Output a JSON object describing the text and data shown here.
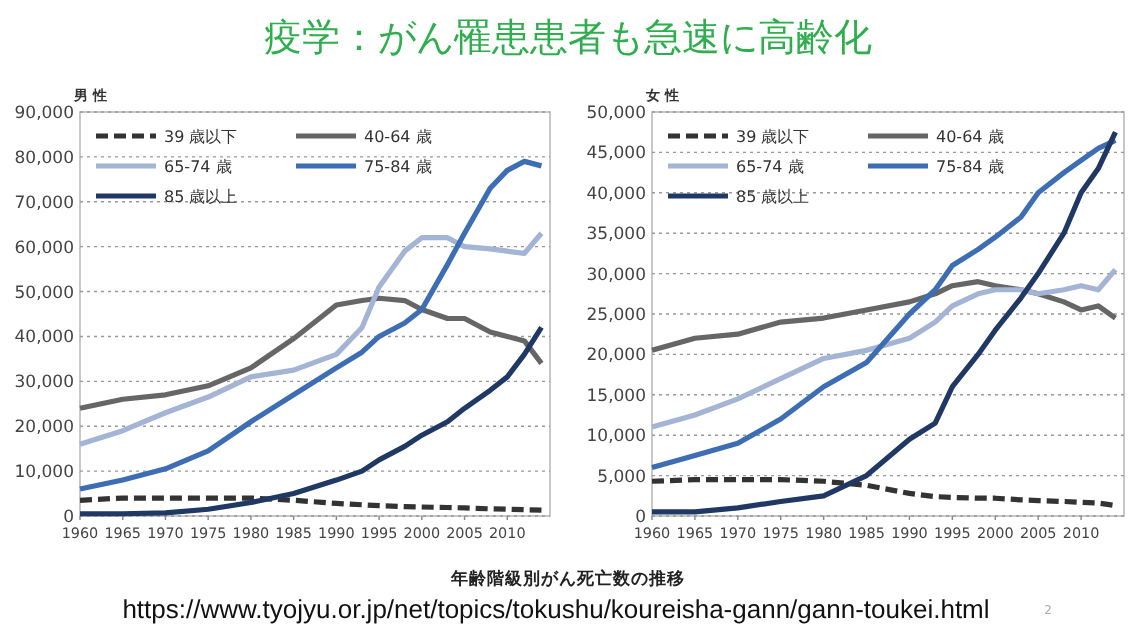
{
  "chart_data": [
    {
      "type": "line",
      "title": "疫学：がん罹患患者も急速に高齢化",
      "subtitle": "男 性",
      "annotations": [
        "年齢階級別がん死亡数の推移",
        "https://www.tyojyu.or.jp/net/topics/tokushu/koureisha-gann/gann-toukei.html",
        "2"
      ],
      "x": [
        1960,
        1965,
        1970,
        1975,
        1980,
        1985,
        1990,
        1993,
        1995,
        1998,
        2000,
        2003,
        2005,
        2008,
        2010,
        2012,
        2014
      ],
      "xlim": [
        1960,
        2015
      ],
      "xticks": [
        1960,
        1965,
        1970,
        1975,
        1980,
        1985,
        1990,
        1995,
        2000,
        2005,
        2010
      ],
      "ylim": [
        0,
        90000
      ],
      "yticks": [
        {
          "value": 0,
          "label": "0"
        },
        {
          "value": 10000,
          "label": "10,000"
        },
        {
          "value": 20000,
          "label": "20,000"
        },
        {
          "value": 30000,
          "label": "30,000"
        },
        {
          "value": 40000,
          "label": "40,000"
        },
        {
          "value": 50000,
          "label": "50,000"
        },
        {
          "value": 60000,
          "label": "60,000"
        },
        {
          "value": 70000,
          "label": "70,000"
        },
        {
          "value": 80000,
          "label": "80,000"
        },
        {
          "value": 90000,
          "label": "90,000"
        }
      ],
      "grid": "y",
      "legend": "top left",
      "series": [
        {
          "name": "39 歳以下",
          "color": "#333333",
          "line_style": "dashed",
          "values": [
            3500,
            4000,
            4000,
            4000,
            4000,
            3500,
            2800,
            2500,
            2300,
            2100,
            2000,
            1900,
            1800,
            1600,
            1500,
            1400,
            1300
          ]
        },
        {
          "name": "40-64 歳",
          "color": "#666666",
          "values": [
            24000,
            26000,
            27000,
            29000,
            33000,
            39500,
            47000,
            48000,
            48500,
            48000,
            46000,
            44000,
            44000,
            41000,
            40000,
            39000,
            34000
          ]
        },
        {
          "name": "65-74 歳",
          "color": "#a4b4d4",
          "values": [
            16000,
            19000,
            23000,
            26500,
            31000,
            32500,
            36000,
            42000,
            51000,
            59000,
            62000,
            62000,
            60000,
            59500,
            59000,
            58500,
            63000
          ]
        },
        {
          "name": "75-84 歳",
          "color": "#3d6db3",
          "values": [
            6000,
            8000,
            10500,
            14500,
            21000,
            27000,
            33000,
            36500,
            40000,
            43000,
            46000,
            56000,
            63000,
            73000,
            77000,
            79000,
            78000
          ]
        },
        {
          "name": "85 歳以上",
          "color": "#1f3864",
          "values": [
            500,
            500,
            700,
            1500,
            3000,
            5000,
            8000,
            10000,
            12500,
            15500,
            18000,
            21000,
            24000,
            28000,
            31000,
            36000,
            42000
          ]
        }
      ]
    },
    {
      "type": "line",
      "subtitle": "女 性",
      "x": [
        1960,
        1965,
        1970,
        1975,
        1980,
        1985,
        1990,
        1993,
        1995,
        1998,
        2000,
        2003,
        2005,
        2008,
        2010,
        2012,
        2014
      ],
      "xlim": [
        1960,
        2015
      ],
      "xticks": [
        1960,
        1965,
        1970,
        1975,
        1980,
        1985,
        1990,
        1995,
        2000,
        2005,
        2010
      ],
      "ylim": [
        0,
        50000
      ],
      "yticks": [
        {
          "value": 0,
          "label": "0"
        },
        {
          "value": 5000,
          "label": "5,000"
        },
        {
          "value": 10000,
          "label": "10,000"
        },
        {
          "value": 15000,
          "label": "15,000"
        },
        {
          "value": 20000,
          "label": "20,000"
        },
        {
          "value": 25000,
          "label": "25,000"
        },
        {
          "value": 30000,
          "label": "30,000"
        },
        {
          "value": 35000,
          "label": "35,000"
        },
        {
          "value": 40000,
          "label": "40,000"
        },
        {
          "value": 45000,
          "label": "45,000"
        },
        {
          "value": 50000,
          "label": "50,000"
        }
      ],
      "grid": "y",
      "legend": "top left",
      "series": [
        {
          "name": "39 歳以下",
          "color": "#333333",
          "line_style": "dashed",
          "values": [
            4300,
            4500,
            4500,
            4500,
            4300,
            3800,
            2800,
            2400,
            2300,
            2200,
            2200,
            2000,
            1900,
            1800,
            1700,
            1600,
            1300
          ]
        },
        {
          "name": "40-64 歳",
          "color": "#666666",
          "values": [
            20500,
            22000,
            22500,
            24000,
            24500,
            25500,
            26500,
            27500,
            28500,
            29000,
            28500,
            28000,
            27500,
            26500,
            25500,
            26000,
            24500
          ]
        },
        {
          "name": "65-74 歳",
          "color": "#a4b4d4",
          "values": [
            11000,
            12500,
            14500,
            17000,
            19500,
            20500,
            22000,
            24000,
            26000,
            27500,
            28000,
            28000,
            27500,
            28000,
            28500,
            28000,
            30500
          ]
        },
        {
          "name": "75-84 歳",
          "color": "#3d6db3",
          "values": [
            6000,
            7500,
            9000,
            12000,
            16000,
            19000,
            25000,
            28000,
            31000,
            33000,
            34500,
            37000,
            40000,
            42500,
            44000,
            45500,
            46500
          ]
        },
        {
          "name": "85 歳以上",
          "color": "#1f3864",
          "values": [
            500,
            500,
            1000,
            1800,
            2500,
            5000,
            9500,
            11500,
            16000,
            20000,
            23000,
            27000,
            30000,
            35000,
            40000,
            43000,
            47500
          ]
        }
      ]
    }
  ]
}
